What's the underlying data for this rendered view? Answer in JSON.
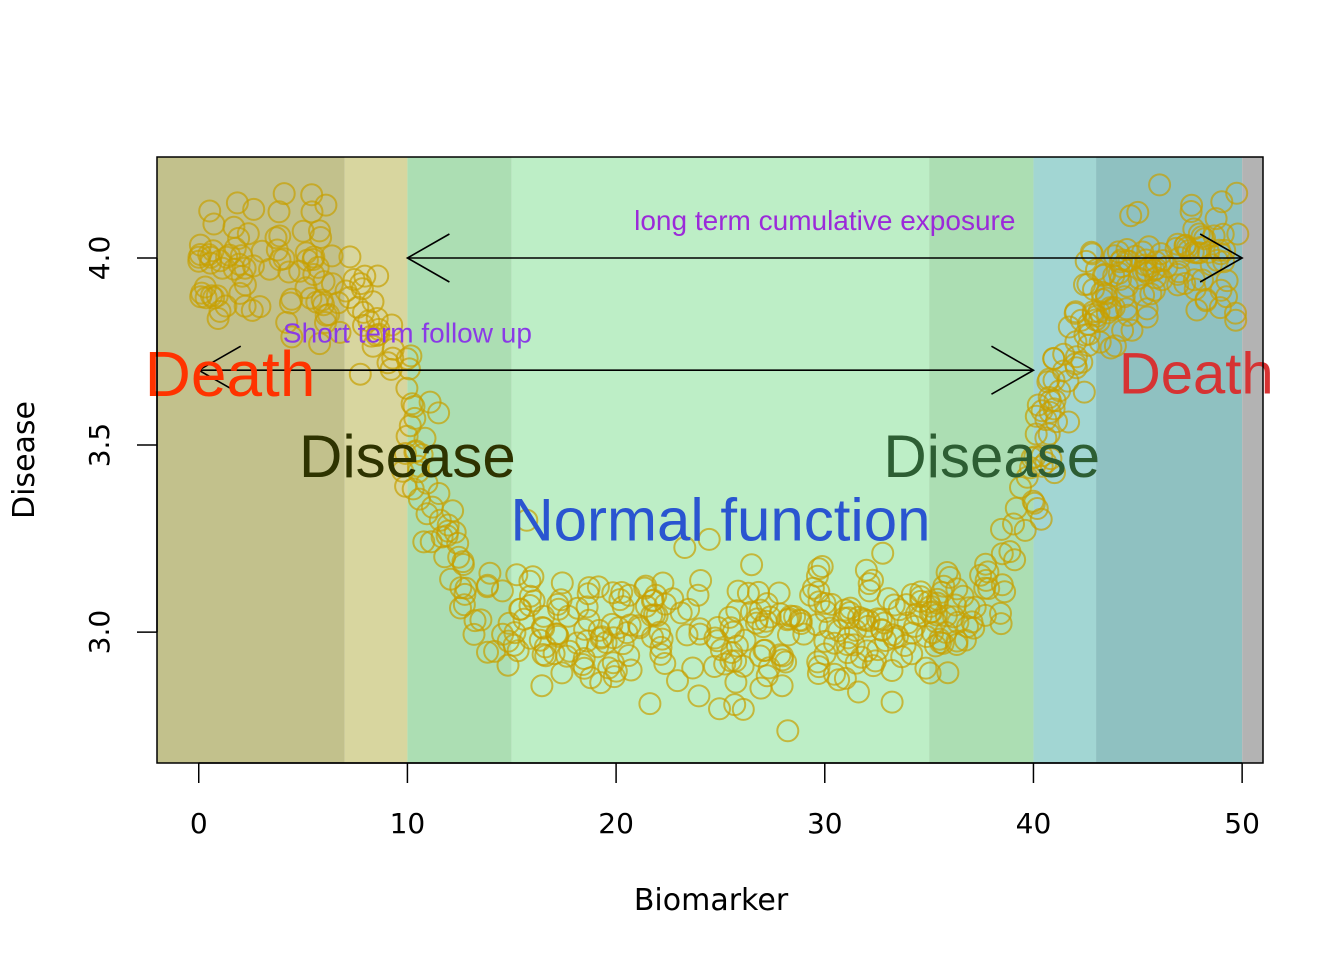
{
  "chart_data": {
    "type": "scatter",
    "title": "",
    "xlabel": "Biomarker",
    "ylabel": "Disease",
    "xlim": [
      -2,
      51
    ],
    "ylim": [
      2.65,
      4.27
    ],
    "x_ticks": [
      0,
      10,
      20,
      30,
      40,
      50
    ],
    "y_ticks": [
      3.0,
      3.5,
      4.0
    ],
    "x_tick_labels": [
      "0",
      "10",
      "20",
      "30",
      "40",
      "50"
    ],
    "y_tick_labels": [
      "3.0",
      "3.5",
      "4.0"
    ],
    "grid": false,
    "legend": "none",
    "regions": [
      {
        "x0": -2,
        "x1": 7,
        "color": "#c2c18c"
      },
      {
        "x0": 7,
        "x1": 10,
        "color": "#d8d69f"
      },
      {
        "x0": 10,
        "x1": 15,
        "color": "#acdeb3"
      },
      {
        "x0": 15,
        "x1": 35,
        "color": "#bdeec6"
      },
      {
        "x0": 35,
        "x1": 40,
        "color": "#acdeb3"
      },
      {
        "x0": 40,
        "x1": 43,
        "color": "#a2d6d3"
      },
      {
        "x0": 43,
        "x1": 50,
        "color": "#8fc1c1"
      },
      {
        "x0": 50,
        "x1": 51,
        "color": "#b3b3b3"
      }
    ],
    "annotations": [
      {
        "text": "Death",
        "x": 1.5,
        "y": 3.69,
        "color": "#ff3300",
        "size": 64
      },
      {
        "text": "Death",
        "x": 47.8,
        "y": 3.69,
        "color": "#d63333",
        "size": 58
      },
      {
        "text": "Disease",
        "x": 10,
        "y": 3.47,
        "color": "#2e3300",
        "size": 60
      },
      {
        "text": "Disease",
        "x": 38,
        "y": 3.47,
        "color": "#2d5e33",
        "size": 60
      },
      {
        "text": "Normal function",
        "x": 25,
        "y": 3.3,
        "color": "#2a55d0",
        "size": 60
      },
      {
        "text": "long term cumulative exposure",
        "x": 30,
        "y": 4.1,
        "color": "#9b2ad9",
        "size": 28
      },
      {
        "text": "Short term follow up",
        "x": 10,
        "y": 3.8,
        "color": "#8a3ae6",
        "size": 28
      }
    ],
    "arrows": [
      {
        "name": "long-term-arrow",
        "x0": 10,
        "x1": 50,
        "y": 4.0,
        "heads": "both"
      },
      {
        "name": "short-term-arrow",
        "x0": 0,
        "x1": 40,
        "y": 3.7,
        "heads": "both"
      }
    ],
    "point_color": "#c8a000",
    "point_count": 620
  }
}
